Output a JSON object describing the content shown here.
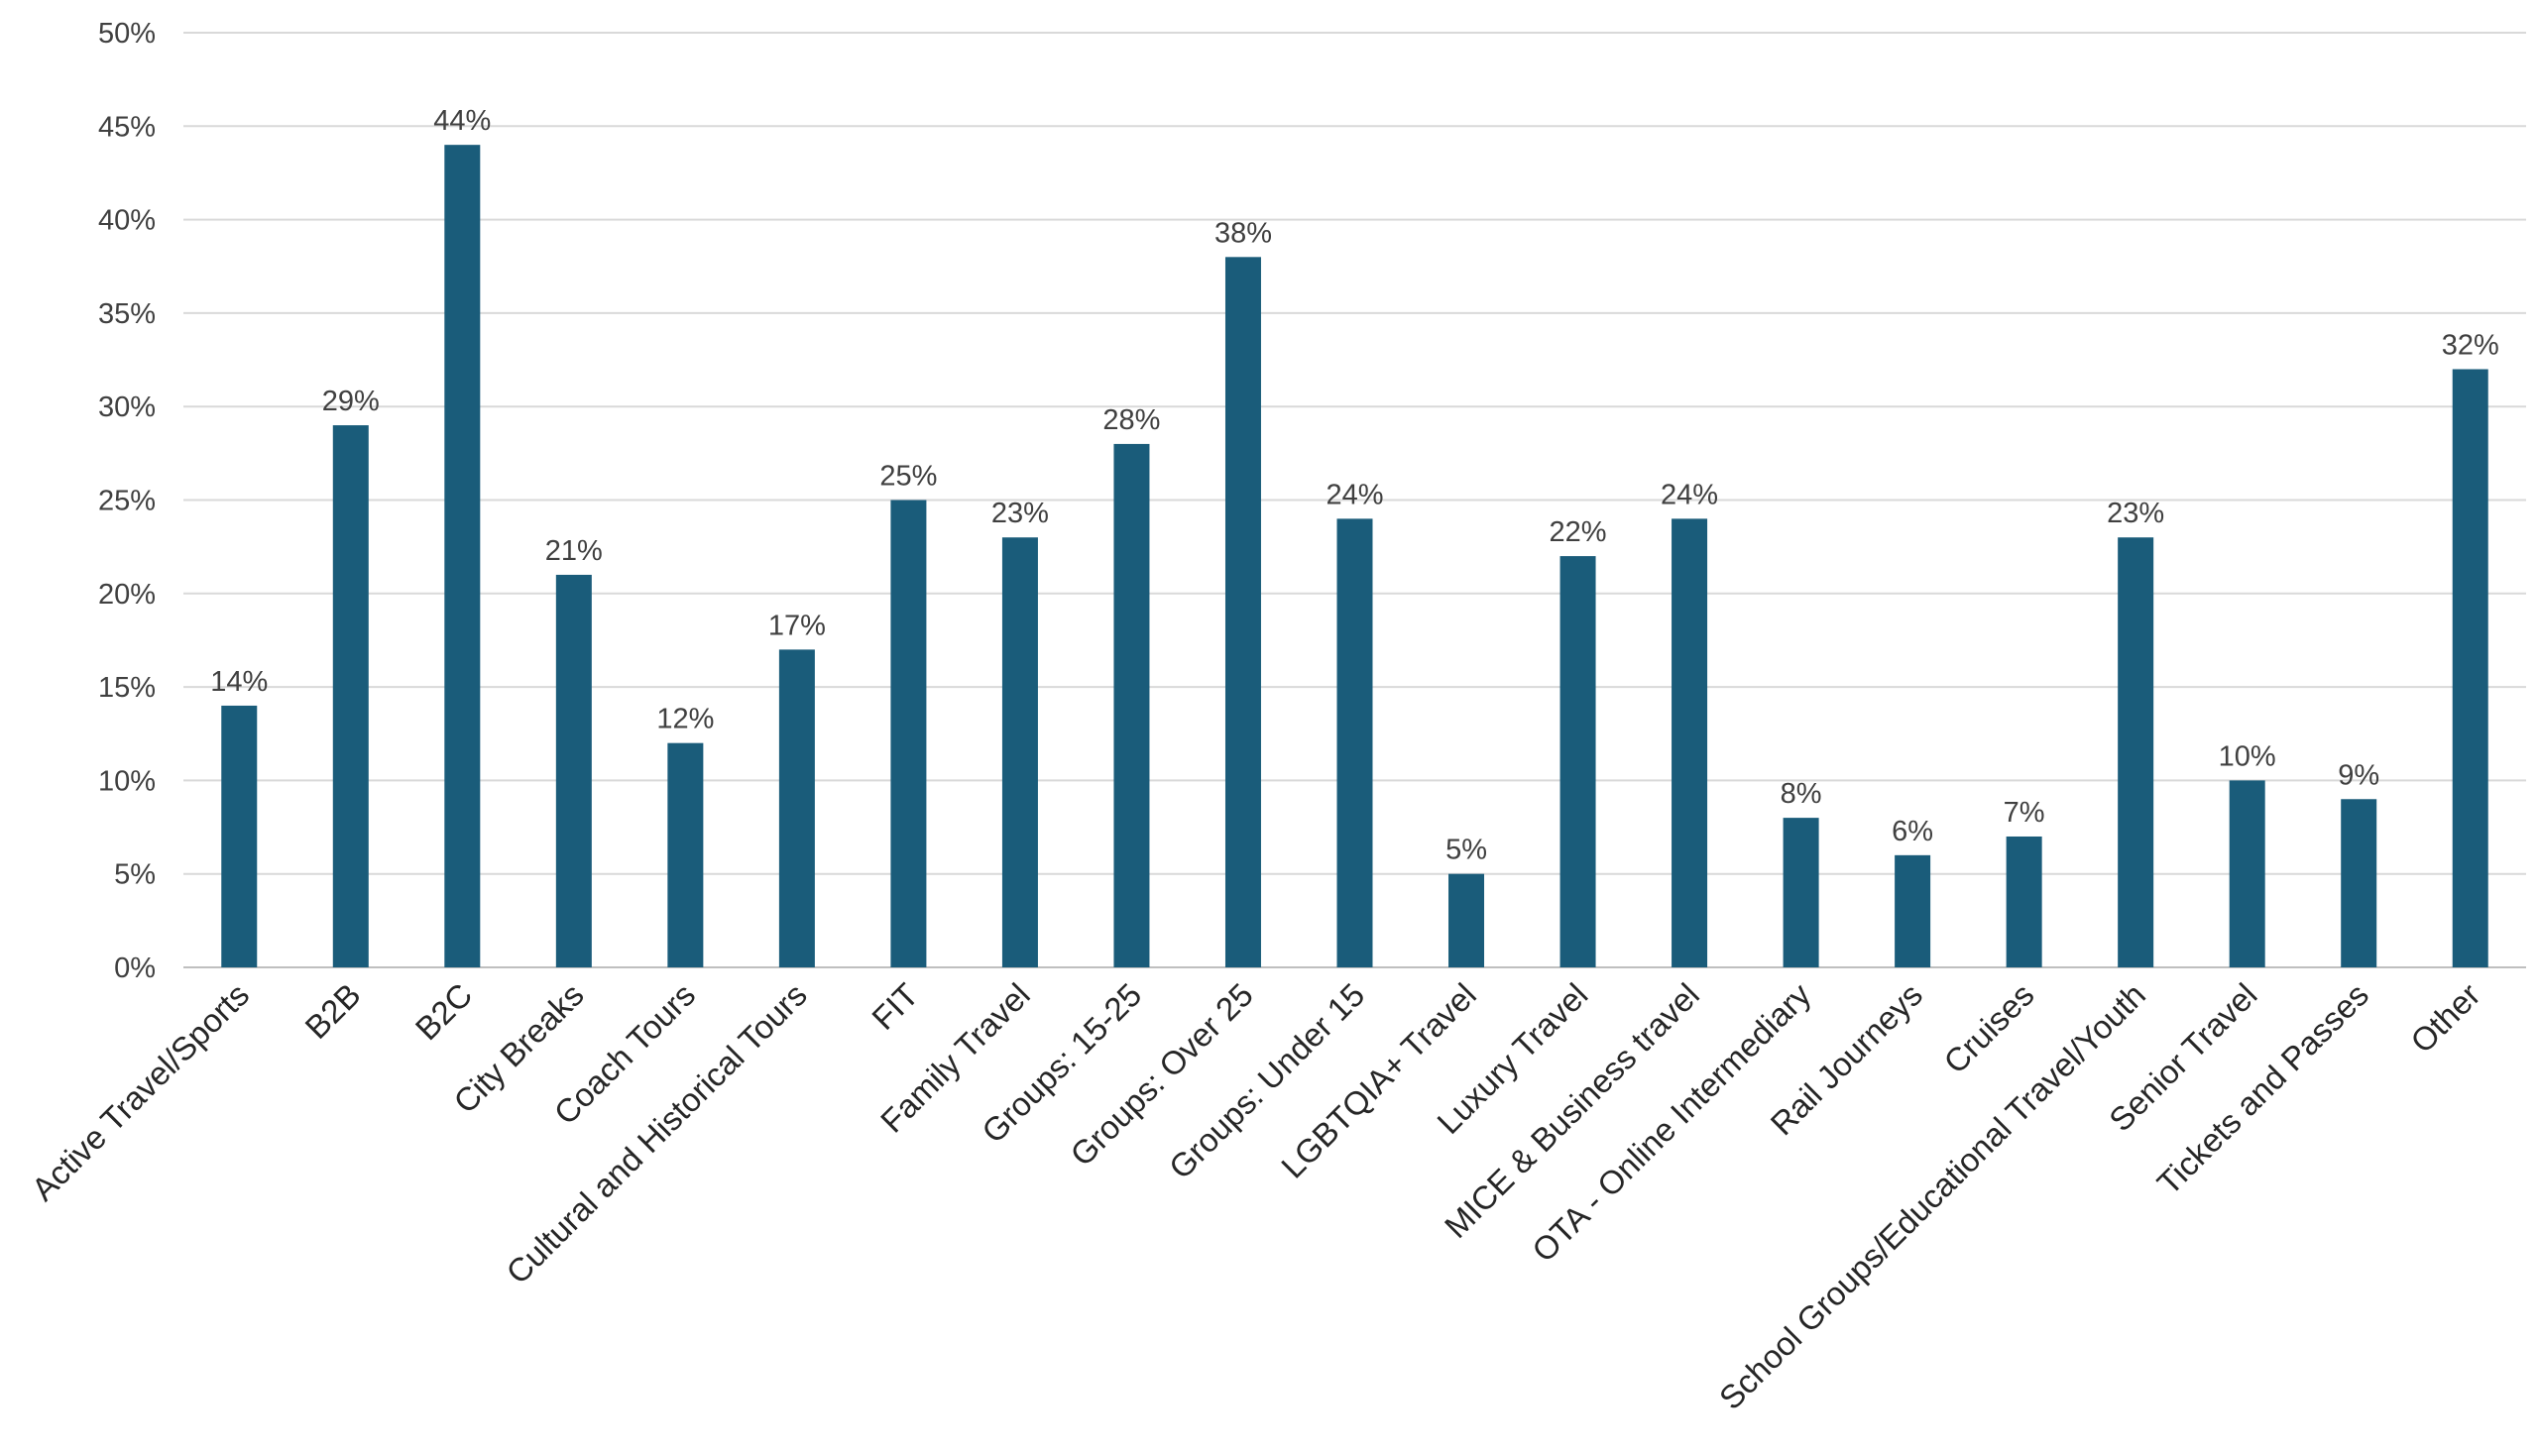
{
  "chart_data": {
    "type": "bar",
    "title": "",
    "xlabel": "",
    "ylabel": "",
    "ylim": [
      0,
      50
    ],
    "ytick_step": 5,
    "yticks": [
      "0%",
      "5%",
      "10%",
      "15%",
      "20%",
      "25%",
      "30%",
      "35%",
      "40%",
      "45%",
      "50%"
    ],
    "value_suffix": "%",
    "grid": true,
    "legend": "none",
    "bar_color": "#1a5c7a",
    "categories": [
      "Active Travel/Sports",
      "B2B",
      "B2C",
      "City Breaks",
      "Coach Tours",
      "Cultural and Historical Tours",
      "FIT",
      "Family Travel",
      "Groups: 15-25",
      "Groups: Over 25",
      "Groups: Under 15",
      "LGBTQIA+ Travel",
      "Luxury Travel",
      "MICE & Business travel",
      "OTA - Online Intermediary",
      "Rail Journeys",
      "Cruises",
      "School Groups/Educational Travel/Youth",
      "Senior Travel",
      "Tickets and Passes",
      "Other"
    ],
    "values": [
      14,
      29,
      44,
      21,
      12,
      17,
      25,
      23,
      28,
      38,
      24,
      5,
      22,
      24,
      8,
      6,
      7,
      23,
      10,
      9,
      32
    ],
    "data_labels": [
      "14%",
      "29%",
      "44%",
      "21%",
      "12%",
      "17%",
      "25%",
      "23%",
      "28%",
      "38%",
      "24%",
      "5%",
      "22%",
      "24%",
      "8%",
      "6%",
      "7%",
      "23%",
      "10%",
      "9%",
      "32%"
    ]
  }
}
